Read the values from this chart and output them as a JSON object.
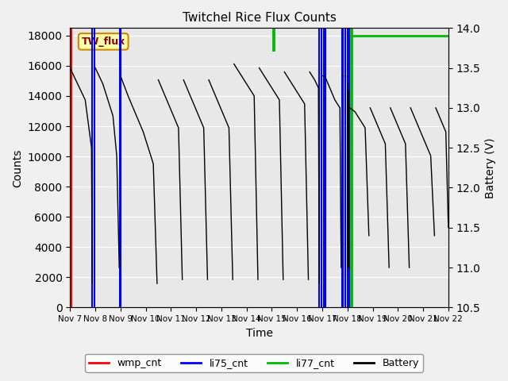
{
  "title": "Twitchel Rice Flux Counts",
  "xlabel": "Time",
  "ylabel_left": "Counts",
  "ylabel_right": "Battery (V)",
  "xlim": [
    0,
    15
  ],
  "ylim_left": [
    0,
    18500
  ],
  "ylim_right": [
    10.5,
    14.0
  ],
  "yticks_left": [
    0,
    2000,
    4000,
    6000,
    8000,
    10000,
    12000,
    14000,
    16000,
    18000
  ],
  "yticks_right": [
    10.5,
    11.0,
    11.5,
    12.0,
    12.5,
    13.0,
    13.5,
    14.0
  ],
  "xtick_labels": [
    "Nov 7",
    "Nov 8",
    "Nov 9",
    "Nov 10",
    "Nov 11",
    "Nov 12",
    "Nov 13",
    "Nov 14",
    "Nov 15",
    "Nov 16",
    "Nov 17",
    "Nov 18",
    "Nov 19",
    "Nov 20",
    "Nov 21",
    "Nov 22"
  ],
  "xtick_positions": [
    0,
    1,
    2,
    3,
    4,
    5,
    6,
    7,
    8,
    9,
    10,
    11,
    12,
    13,
    14,
    15
  ],
  "annotation_text": "TW_flux",
  "bg_color": "#f0f0f0",
  "plot_bg_color": "#e8e8e8",
  "wmp_color": "#ff0000",
  "li75_color": "#0000ff",
  "li77_color": "#00bb00",
  "battery_color": "#000000",
  "battery_segments": [
    [
      0.0,
      13.5
    ],
    [
      0.3,
      13.3
    ],
    [
      0.6,
      13.1
    ],
    [
      0.85,
      12.5
    ],
    [
      0.88,
      10.8
    ],
    [
      0.9,
      null
    ],
    [
      1.0,
      13.5
    ],
    [
      1.3,
      13.3
    ],
    [
      1.5,
      13.1
    ],
    [
      1.7,
      12.9
    ],
    [
      1.85,
      12.4
    ],
    [
      1.95,
      11.0
    ],
    [
      1.97,
      null
    ],
    [
      2.0,
      13.4
    ],
    [
      2.3,
      13.15
    ],
    [
      2.5,
      13.0
    ],
    [
      2.7,
      12.85
    ],
    [
      2.9,
      12.7
    ],
    [
      3.1,
      12.5
    ],
    [
      3.3,
      12.3
    ],
    [
      3.45,
      10.8
    ],
    [
      3.47,
      null
    ],
    [
      3.5,
      13.35
    ],
    [
      3.7,
      13.2
    ],
    [
      3.9,
      13.05
    ],
    [
      4.1,
      12.9
    ],
    [
      4.3,
      12.75
    ],
    [
      4.45,
      10.85
    ],
    [
      4.47,
      null
    ],
    [
      4.5,
      13.35
    ],
    [
      4.7,
      13.2
    ],
    [
      4.9,
      13.05
    ],
    [
      5.1,
      12.9
    ],
    [
      5.3,
      12.75
    ],
    [
      5.45,
      10.85
    ],
    [
      5.47,
      null
    ],
    [
      5.5,
      13.35
    ],
    [
      5.7,
      13.2
    ],
    [
      5.9,
      13.05
    ],
    [
      6.1,
      12.9
    ],
    [
      6.3,
      12.75
    ],
    [
      6.45,
      10.85
    ],
    [
      6.47,
      null
    ],
    [
      6.5,
      13.55
    ],
    [
      6.7,
      13.45
    ],
    [
      6.9,
      13.35
    ],
    [
      7.1,
      13.25
    ],
    [
      7.3,
      13.15
    ],
    [
      7.45,
      10.85
    ],
    [
      7.47,
      null
    ],
    [
      7.5,
      13.5
    ],
    [
      7.7,
      13.4
    ],
    [
      7.9,
      13.3
    ],
    [
      8.1,
      13.2
    ],
    [
      8.3,
      13.1
    ],
    [
      8.45,
      10.85
    ],
    [
      8.47,
      null
    ],
    [
      8.5,
      13.45
    ],
    [
      8.7,
      13.35
    ],
    [
      8.9,
      13.25
    ],
    [
      9.1,
      13.15
    ],
    [
      9.3,
      13.05
    ],
    [
      9.45,
      10.85
    ],
    [
      9.47,
      null
    ],
    [
      9.5,
      13.45
    ],
    [
      9.7,
      13.35
    ],
    [
      9.85,
      13.25
    ],
    [
      9.88,
      10.8
    ],
    [
      9.9,
      null
    ],
    [
      10.0,
      13.4
    ],
    [
      10.03,
      13.4
    ],
    [
      10.05,
      null
    ],
    [
      10.1,
      13.4
    ],
    [
      10.3,
      13.25
    ],
    [
      10.5,
      13.1
    ],
    [
      10.7,
      13.0
    ],
    [
      10.75,
      11.0
    ],
    [
      10.78,
      null
    ],
    [
      10.8,
      13.4
    ],
    [
      10.83,
      13.4
    ],
    [
      10.85,
      null
    ],
    [
      10.9,
      13.4
    ],
    [
      10.93,
      13.4
    ],
    [
      10.95,
      null
    ],
    [
      11.0,
      13.3
    ],
    [
      11.02,
      11.0
    ],
    [
      11.04,
      null
    ],
    [
      11.05,
      13.2
    ],
    [
      11.06,
      11.0
    ],
    [
      11.08,
      null
    ],
    [
      11.1,
      13.0
    ],
    [
      11.3,
      12.95
    ],
    [
      11.5,
      12.85
    ],
    [
      11.7,
      12.75
    ],
    [
      11.85,
      11.4
    ],
    [
      11.87,
      null
    ],
    [
      11.9,
      13.0
    ],
    [
      12.1,
      12.85
    ],
    [
      12.3,
      12.7
    ],
    [
      12.5,
      12.55
    ],
    [
      12.65,
      11.0
    ],
    [
      12.67,
      null
    ],
    [
      12.7,
      13.0
    ],
    [
      12.9,
      12.85
    ],
    [
      13.1,
      12.7
    ],
    [
      13.3,
      12.55
    ],
    [
      13.45,
      11.0
    ],
    [
      13.47,
      null
    ],
    [
      13.5,
      13.0
    ],
    [
      13.7,
      12.85
    ],
    [
      13.9,
      12.7
    ],
    [
      14.1,
      12.55
    ],
    [
      14.3,
      12.4
    ],
    [
      14.45,
      11.4
    ],
    [
      14.47,
      null
    ],
    [
      14.5,
      13.0
    ],
    [
      14.7,
      12.85
    ],
    [
      14.9,
      12.7
    ],
    [
      15.0,
      11.5
    ]
  ],
  "li75_lines": [
    0.88,
    0.97,
    1.97,
    2.02,
    9.88,
    9.98,
    10.05,
    10.12,
    10.78,
    10.83,
    10.92,
    11.02,
    11.08
  ],
  "li77_hline_y": 18000,
  "li77_hline_xstart": 11.12,
  "li77_hline_xend": 15.0,
  "li77_vlines": [
    11.12,
    11.18
  ],
  "li77_short_vlines": [
    8.05,
    8.08
  ],
  "li77_short_vlines_ymin": 0.92,
  "li77_short_vlines_ymax": 1.0,
  "wmp_line_x": 0.05,
  "legend_labels": [
    "wmp_cnt",
    "li75_cnt",
    "li77_cnt",
    "Battery"
  ]
}
